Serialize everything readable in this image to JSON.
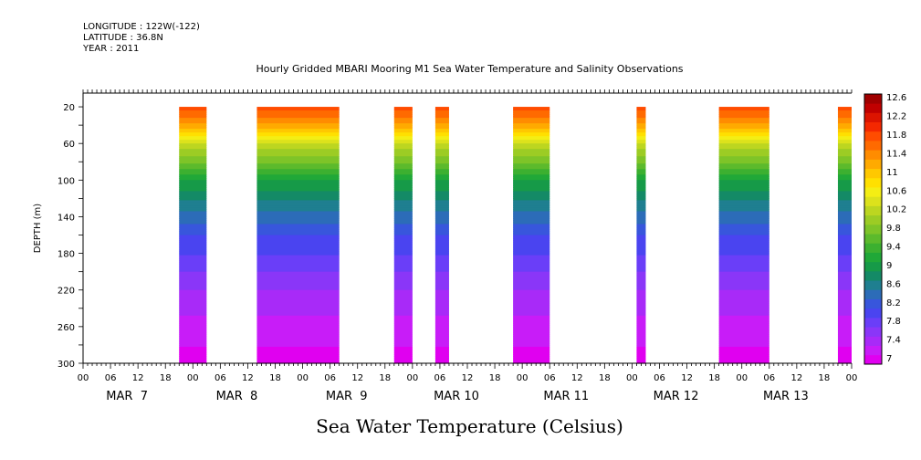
{
  "meta": {
    "longitude": "LONGITUDE : 122W(-122)",
    "latitude": "LATITUDE : 36.8N",
    "year": "YEAR : 2011"
  },
  "title": "Hourly Gridded MBARI Mooring M1 Sea Water Temperature and Salinity Observations",
  "caption": "Sea Water Temperature (Celsius)",
  "chart_data": {
    "type": "heatmap",
    "title": "Hourly Gridded MBARI Mooring M1 Sea Water Temperature and Salinity Observations",
    "xlabel": "",
    "ylabel": "DEPTH (m)",
    "ylim": [
      300,
      5
    ],
    "y_reversed": true,
    "yticks": [
      "20",
      "60",
      "100",
      "140",
      "180",
      "220",
      "260",
      "300"
    ],
    "xlim_hours": [
      0,
      168
    ],
    "x_hour_labels": [
      "00",
      "06",
      "12",
      "18",
      "00",
      "06",
      "12",
      "18",
      "00",
      "06",
      "12",
      "18",
      "00",
      "06",
      "12",
      "18",
      "00",
      "06",
      "12",
      "18",
      "00",
      "06",
      "12",
      "18",
      "00",
      "06",
      "12",
      "18",
      "00"
    ],
    "day_labels": [
      "MAR  7",
      "MAR  8",
      "MAR  9",
      "MAR 10",
      "MAR 11",
      "MAR 12",
      "MAR 13"
    ],
    "colorbar": {
      "label": "Sea Water Temperature (Celsius)",
      "tick_labels": [
        "12.6",
        "12.2",
        "11.8",
        "11.4",
        "11",
        "10.6",
        "10.2",
        "9.8",
        "9.4",
        "9",
        "8.6",
        "8.2",
        "7.8",
        "7.4",
        "7"
      ],
      "min": 7,
      "max": 12.8,
      "step": 0.2
    },
    "data_segments_hours": [
      {
        "start": 21,
        "end": 27
      },
      {
        "start": 38,
        "end": 56
      },
      {
        "start": 68,
        "end": 72
      },
      {
        "start": 77,
        "end": 80
      },
      {
        "start": 94,
        "end": 102
      },
      {
        "start": 121,
        "end": 123
      },
      {
        "start": 139,
        "end": 150
      },
      {
        "start": 165,
        "end": 169
      }
    ],
    "temperature_profile": [
      {
        "depth": 20,
        "value": 11.9
      },
      {
        "depth": 40,
        "value": 11.3
      },
      {
        "depth": 60,
        "value": 10.3
      },
      {
        "depth": 80,
        "value": 9.8
      },
      {
        "depth": 100,
        "value": 9.2
      },
      {
        "depth": 120,
        "value": 8.8
      },
      {
        "depth": 140,
        "value": 8.5
      },
      {
        "depth": 160,
        "value": 8.2
      },
      {
        "depth": 180,
        "value": 8.0
      },
      {
        "depth": 200,
        "value": 7.8
      },
      {
        "depth": 220,
        "value": 7.6
      },
      {
        "depth": 240,
        "value": 7.45
      },
      {
        "depth": 260,
        "value": 7.3
      },
      {
        "depth": 280,
        "value": 7.2
      },
      {
        "depth": 300,
        "value": 7.1
      }
    ]
  }
}
